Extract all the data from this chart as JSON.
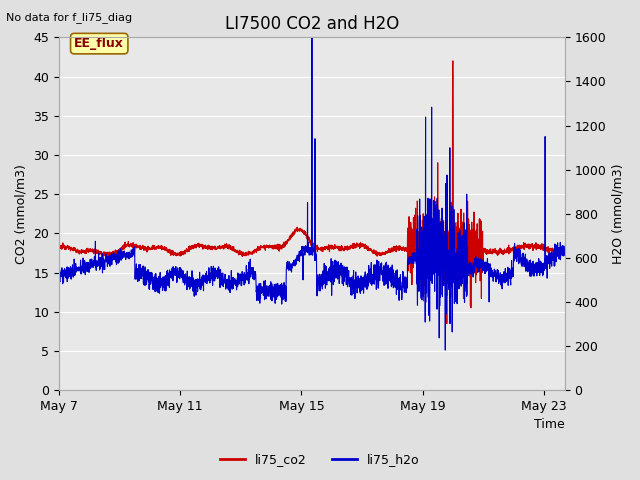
{
  "title": "LI7500 CO2 and H2O",
  "top_left_text": "No data for f_li75_diag",
  "xlabel": "Time",
  "ylabel_left": "CO2 (mmol/m3)",
  "ylabel_right": "H2O (mmol/m3)",
  "ylim_left": [
    0,
    45
  ],
  "ylim_right": [
    0,
    1600
  ],
  "yticks_left": [
    0,
    5,
    10,
    15,
    20,
    25,
    30,
    35,
    40,
    45
  ],
  "yticks_right": [
    0,
    200,
    400,
    600,
    800,
    1000,
    1200,
    1400,
    1600
  ],
  "xtick_labels": [
    "May 7",
    "May 11",
    "May 15",
    "May 19",
    "May 23"
  ],
  "xtick_positions": [
    0,
    4,
    8,
    12,
    16
  ],
  "xlim": [
    0,
    16.7
  ],
  "color_co2": "#cc0000",
  "color_h2o": "#0000cc",
  "legend_label_co2": "li75_co2",
  "legend_label_h2o": "li75_h2o",
  "fig_bg_color": "#e0e0e0",
  "plot_bg_color": "#e8e8e8",
  "grid_color": "#ffffff",
  "ee_flux_box_facecolor": "#ffffaa",
  "ee_flux_box_edgecolor": "#996600",
  "ee_flux_text": "EE_flux",
  "ee_flux_text_color": "#880000",
  "title_fontsize": 12,
  "label_fontsize": 9,
  "tick_fontsize": 9,
  "annot_fontsize": 8
}
